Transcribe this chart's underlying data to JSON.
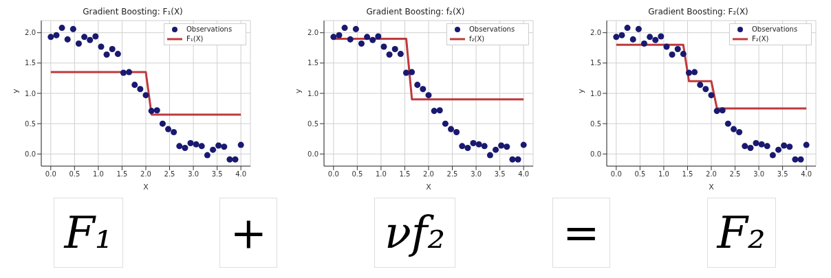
{
  "chart_data": [
    {
      "type": "scatter",
      "title": "Gradient Boosting: F₁(X)",
      "xlabel": "X",
      "ylabel": "y",
      "xlim": [
        -0.2,
        4.2
      ],
      "ylim": [
        -0.2,
        2.2
      ],
      "xticks": [
        {
          "value": 0,
          "label": "0.0"
        },
        {
          "value": 0.5,
          "label": "0.5"
        },
        {
          "value": 1,
          "label": "1.0"
        },
        {
          "value": 1.5,
          "label": "1.5"
        },
        {
          "value": 2,
          "label": "2.0"
        },
        {
          "value": 2.5,
          "label": "2.5"
        },
        {
          "value": 3,
          "label": "3.0"
        },
        {
          "value": 3.5,
          "label": "3.5"
        },
        {
          "value": 4,
          "label": "4.0"
        }
      ],
      "yticks": [
        {
          "value": 0,
          "label": "0.0"
        },
        {
          "value": 0.5,
          "label": "0.5"
        },
        {
          "value": 1,
          "label": "1.0"
        },
        {
          "value": 1.5,
          "label": "1.5"
        },
        {
          "value": 2,
          "label": "2.0"
        }
      ],
      "grid": true,
      "legend": "top right",
      "line_style": "solid",
      "series": [
        {
          "name": "Observations",
          "type": "scatter",
          "marker": "circle",
          "color": "#191970",
          "x": [
            0,
            0.118,
            0.235,
            0.353,
            0.471,
            0.588,
            0.706,
            0.824,
            0.941,
            1.059,
            1.176,
            1.294,
            1.412,
            1.529,
            1.647,
            1.765,
            1.882,
            2.0,
            2.118,
            2.235,
            2.353,
            2.471,
            2.588,
            2.706,
            2.824,
            2.941,
            3.059,
            3.176,
            3.294,
            3.412,
            3.529,
            3.647,
            3.765,
            3.882,
            4.0
          ],
          "values": [
            1.93,
            1.96,
            2.08,
            1.89,
            2.06,
            1.82,
            1.93,
            1.88,
            1.94,
            1.77,
            1.64,
            1.73,
            1.65,
            1.34,
            1.35,
            1.14,
            1.07,
            0.97,
            0.71,
            0.72,
            0.5,
            0.41,
            0.36,
            0.13,
            0.1,
            0.18,
            0.16,
            0.13,
            -0.02,
            0.07,
            0.14,
            0.12,
            -0.09,
            -0.09,
            0.15
          ]
        },
        {
          "name": "F₁(X)",
          "type": "line",
          "marker": "none",
          "color": "#c0393b",
          "x": [
            0,
            2.0,
            2.12,
            4.0
          ],
          "values": [
            1.35,
            1.35,
            0.65,
            0.65
          ]
        }
      ]
    },
    {
      "type": "scatter",
      "title": "Gradient Boosting: f₂(X)",
      "xlabel": "X",
      "ylabel": "y",
      "xlim": [
        -0.2,
        4.2
      ],
      "ylim": [
        -0.2,
        2.2
      ],
      "xticks": [
        {
          "value": 0,
          "label": "0.0"
        },
        {
          "value": 0.5,
          "label": "0.5"
        },
        {
          "value": 1,
          "label": "1.0"
        },
        {
          "value": 1.5,
          "label": "1.5"
        },
        {
          "value": 2,
          "label": "2.0"
        },
        {
          "value": 2.5,
          "label": "2.5"
        },
        {
          "value": 3,
          "label": "3.0"
        },
        {
          "value": 3.5,
          "label": "3.5"
        },
        {
          "value": 4,
          "label": "4.0"
        }
      ],
      "yticks": [
        {
          "value": 0,
          "label": "0.0"
        },
        {
          "value": 0.5,
          "label": "0.5"
        },
        {
          "value": 1,
          "label": "1.0"
        },
        {
          "value": 1.5,
          "label": "1.5"
        },
        {
          "value": 2,
          "label": "2.0"
        }
      ],
      "grid": true,
      "legend": "top right",
      "line_style": "solid",
      "series": [
        {
          "name": "Observations",
          "type": "scatter",
          "marker": "circle",
          "color": "#191970",
          "x": [
            0,
            0.118,
            0.235,
            0.353,
            0.471,
            0.588,
            0.706,
            0.824,
            0.941,
            1.059,
            1.176,
            1.294,
            1.412,
            1.529,
            1.647,
            1.765,
            1.882,
            2.0,
            2.118,
            2.235,
            2.353,
            2.471,
            2.588,
            2.706,
            2.824,
            2.941,
            3.059,
            3.176,
            3.294,
            3.412,
            3.529,
            3.647,
            3.765,
            3.882,
            4.0
          ],
          "values": [
            1.93,
            1.96,
            2.08,
            1.89,
            2.06,
            1.82,
            1.93,
            1.88,
            1.94,
            1.77,
            1.64,
            1.73,
            1.65,
            1.34,
            1.35,
            1.14,
            1.07,
            0.97,
            0.71,
            0.72,
            0.5,
            0.41,
            0.36,
            0.13,
            0.1,
            0.18,
            0.16,
            0.13,
            -0.02,
            0.07,
            0.14,
            0.12,
            -0.09,
            -0.09,
            0.15
          ]
        },
        {
          "name": "f₂(X)",
          "type": "line",
          "marker": "none",
          "color": "#c0393b",
          "x": [
            0,
            1.53,
            1.65,
            4.0
          ],
          "values": [
            1.9,
            1.9,
            0.9,
            0.9
          ]
        }
      ]
    },
    {
      "type": "scatter",
      "title": "Gradient Boosting: F₂(X)",
      "xlabel": "X",
      "ylabel": "y",
      "xlim": [
        -0.2,
        4.2
      ],
      "ylim": [
        -0.2,
        2.2
      ],
      "xticks": [
        {
          "value": 0,
          "label": "0.0"
        },
        {
          "value": 0.5,
          "label": "0.5"
        },
        {
          "value": 1,
          "label": "1.0"
        },
        {
          "value": 1.5,
          "label": "1.5"
        },
        {
          "value": 2,
          "label": "2.0"
        },
        {
          "value": 2.5,
          "label": "2.5"
        },
        {
          "value": 3,
          "label": "3.0"
        },
        {
          "value": 3.5,
          "label": "3.5"
        },
        {
          "value": 4,
          "label": "4.0"
        }
      ],
      "yticks": [
        {
          "value": 0,
          "label": "0.0"
        },
        {
          "value": 0.5,
          "label": "0.5"
        },
        {
          "value": 1,
          "label": "1.0"
        },
        {
          "value": 1.5,
          "label": "1.5"
        },
        {
          "value": 2,
          "label": "2.0"
        }
      ],
      "grid": true,
      "legend": "top right",
      "line_style": "solid",
      "series": [
        {
          "name": "Observations",
          "type": "scatter",
          "marker": "circle",
          "color": "#191970",
          "x": [
            0,
            0.118,
            0.235,
            0.353,
            0.471,
            0.588,
            0.706,
            0.824,
            0.941,
            1.059,
            1.176,
            1.294,
            1.412,
            1.529,
            1.647,
            1.765,
            1.882,
            2.0,
            2.118,
            2.235,
            2.353,
            2.471,
            2.588,
            2.706,
            2.824,
            2.941,
            3.059,
            3.176,
            3.294,
            3.412,
            3.529,
            3.647,
            3.765,
            3.882,
            4.0
          ],
          "values": [
            1.93,
            1.96,
            2.08,
            1.89,
            2.06,
            1.82,
            1.93,
            1.88,
            1.94,
            1.77,
            1.64,
            1.73,
            1.65,
            1.34,
            1.35,
            1.14,
            1.07,
            0.97,
            0.71,
            0.72,
            0.5,
            0.41,
            0.36,
            0.13,
            0.1,
            0.18,
            0.16,
            0.13,
            -0.02,
            0.07,
            0.14,
            0.12,
            -0.09,
            -0.09,
            0.15
          ]
        },
        {
          "name": "F₂(X)",
          "type": "line",
          "marker": "none",
          "color": "#c0393b",
          "x": [
            0,
            1.41,
            1.53,
            2.0,
            2.12,
            4.0
          ],
          "values": [
            1.8,
            1.8,
            1.2,
            1.2,
            0.75,
            0.75
          ]
        }
      ]
    },
    {
      "type": "other",
      "annotations": [
        "F₁",
        "+",
        "νf₂",
        "=",
        "F₂"
      ]
    }
  ]
}
